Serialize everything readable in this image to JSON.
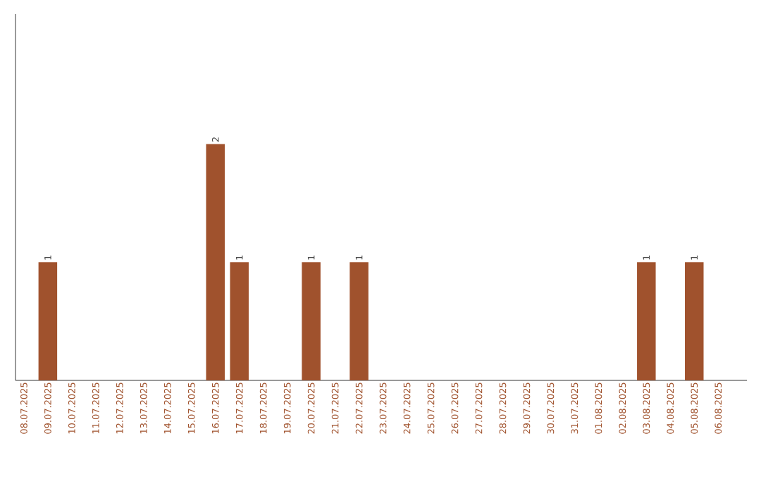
{
  "chart_data": {
    "type": "bar",
    "categories": [
      "08.07.2025",
      "09.07.2025",
      "10.07.2025",
      "11.07.2025",
      "12.07.2025",
      "13.07.2025",
      "14.07.2025",
      "15.07.2025",
      "16.07.2025",
      "17.07.2025",
      "18.07.2025",
      "19.07.2025",
      "20.07.2025",
      "21.07.2025",
      "22.07.2025",
      "23.07.2025",
      "24.07.2025",
      "25.07.2025",
      "26.07.2025",
      "27.07.2025",
      "28.07.2025",
      "29.07.2025",
      "30.07.2025",
      "31.07.2025",
      "01.08.2025",
      "02.08.2025",
      "03.08.2025",
      "04.08.2025",
      "05.08.2025",
      "06.08.2025"
    ],
    "values": [
      0,
      1,
      0,
      0,
      0,
      0,
      0,
      0,
      2,
      1,
      0,
      0,
      1,
      0,
      1,
      0,
      0,
      0,
      0,
      0,
      0,
      0,
      0,
      0,
      0,
      0,
      1,
      0,
      1,
      0
    ],
    "value_labels": [
      null,
      "1",
      null,
      null,
      null,
      null,
      null,
      null,
      "2",
      "1",
      null,
      null,
      "1",
      null,
      "1",
      null,
      null,
      null,
      null,
      null,
      null,
      null,
      null,
      null,
      null,
      null,
      "1",
      null,
      "1",
      null
    ],
    "color": "#a0522d",
    "ylim": [
      0,
      3.1
    ],
    "grid": false
  }
}
